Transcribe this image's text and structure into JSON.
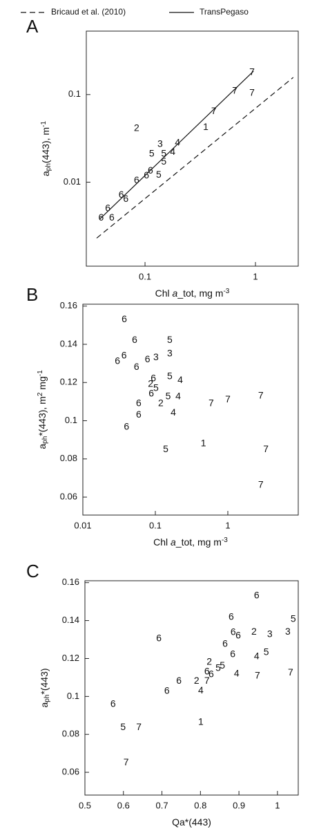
{
  "chart_data": [
    {
      "type": "scatter",
      "panel_label": "A",
      "xlog": true,
      "ylog": true,
      "xlim": [
        0.0294,
        2.44
      ],
      "ylim": [
        0.0011,
        0.53
      ],
      "xticks": [
        0.1,
        1
      ],
      "yticks": [
        0.01,
        0.1
      ],
      "xlabel": [
        {
          "text": "Chl "
        },
        {
          "text": "a",
          "style": "italic"
        },
        {
          "text": "_tot, mg m"
        },
        {
          "text": "-3",
          "style": "sup"
        }
      ],
      "ylabel": [
        {
          "text": "a"
        },
        {
          "text": "ph",
          "style": "sub"
        },
        {
          "text": "(443), m"
        },
        {
          "text": "-1",
          "style": "sup"
        }
      ],
      "series": [
        {
          "name": "Bricaud et al. (2010)",
          "style": "dashed",
          "color": "#111111",
          "x": [
            0.0365,
            2.2
          ],
          "values": [
            0.0023,
            0.157
          ]
        },
        {
          "name": "TransPegaso",
          "style": "solid",
          "color": "#111111",
          "x": [
            0.039,
            0.96
          ],
          "values": [
            0.0038,
            0.185
          ]
        }
      ],
      "points": {
        "x": [
          0.93,
          0.65,
          0.93,
          0.42,
          0.355,
          0.084,
          0.197,
          0.178,
          0.137,
          0.115,
          0.148,
          0.148,
          0.133,
          0.112,
          0.103,
          0.084,
          0.061,
          0.067,
          0.046,
          0.04,
          0.05
        ],
        "values": [
          0.179,
          0.109,
          0.104,
          0.064,
          0.042,
          0.041,
          0.028,
          0.022,
          0.027,
          0.021,
          0.021,
          0.017,
          0.012,
          0.0134,
          0.0118,
          0.0104,
          0.0071,
          0.0064,
          0.005,
          0.0039,
          0.0039
        ],
        "labels": [
          "7",
          "7",
          "7",
          "7",
          "1",
          "2",
          "4",
          "4",
          "3",
          "5",
          "5",
          "5",
          "5",
          "6",
          "6",
          "6",
          "6",
          "6",
          "6",
          "6",
          "6"
        ]
      }
    },
    {
      "type": "scatter",
      "panel_label": "B",
      "xlog": true,
      "ylog": false,
      "xlim": [
        0.01,
        9.36
      ],
      "ylim": [
        0.0506,
        0.161
      ],
      "xticks": [
        0.01,
        0.1,
        1
      ],
      "yticks": [
        0.06,
        0.08,
        0.1,
        0.12,
        0.14,
        0.16
      ],
      "xlabel": [
        {
          "text": "Chl "
        },
        {
          "text": "a",
          "style": "italic"
        },
        {
          "text": "_tot, mg m"
        },
        {
          "text": "-3",
          "style": "sup"
        }
      ],
      "ylabel": [
        {
          "text": "a"
        },
        {
          "text": "ph",
          "style": "sub"
        },
        {
          "text": "*(443), m"
        },
        {
          "text": "2",
          "style": "sup"
        },
        {
          "text": " mg"
        },
        {
          "text": "-1",
          "style": "sup"
        }
      ],
      "points": {
        "x": [
          0.0373,
          0.0518,
          0.158,
          0.03,
          0.037,
          0.055,
          0.078,
          0.102,
          0.158,
          0.094,
          0.158,
          0.22,
          0.086,
          0.102,
          0.088,
          0.15,
          0.206,
          0.119,
          0.059,
          0.59,
          1.0,
          2.85,
          0.059,
          0.177,
          0.04,
          0.46,
          0.139,
          3.35,
          2.85
        ],
        "values": [
          0.153,
          0.142,
          0.142,
          0.131,
          0.134,
          0.128,
          0.132,
          0.133,
          0.135,
          0.122,
          0.123,
          0.121,
          0.119,
          0.117,
          0.114,
          0.1125,
          0.1125,
          0.109,
          0.109,
          0.109,
          0.111,
          0.113,
          0.103,
          0.104,
          0.0966,
          0.088,
          0.0848,
          0.0848,
          0.0662
        ],
        "labels": [
          "6",
          "6",
          "5",
          "6",
          "6",
          "6",
          "6",
          "3",
          "3",
          "6",
          "5",
          "4",
          "2",
          "5",
          "6",
          "5",
          "4",
          "2",
          "6",
          "7",
          "7",
          "7",
          "6",
          "4",
          "6",
          "1",
          "5",
          "7",
          "7"
        ]
      }
    },
    {
      "type": "scatter",
      "panel_label": "C",
      "xlog": false,
      "ylog": false,
      "xlim": [
        0.5,
        1.054
      ],
      "ylim": [
        0.048,
        0.161
      ],
      "xticks": [
        0.5,
        0.6,
        0.7,
        0.8,
        0.9,
        1
      ],
      "yticks": [
        0.06,
        0.08,
        0.1,
        0.12,
        0.14,
        0.16
      ],
      "xlabel": [
        {
          "text": "Qa*(443)"
        }
      ],
      "ylabel": [
        {
          "text": "a"
        },
        {
          "text": "ph",
          "style": "sub"
        },
        {
          "text": "*(443)"
        }
      ],
      "points": {
        "x": [
          0.946,
          1.041,
          0.88,
          0.692,
          0.885,
          0.898,
          0.939,
          0.98,
          1.027,
          0.864,
          0.884,
          0.971,
          0.946,
          0.823,
          0.817,
          0.857,
          0.846,
          0.828,
          0.79,
          0.817,
          0.744,
          0.894,
          0.948,
          1.034,
          0.801,
          0.713,
          0.573,
          0.599,
          0.64,
          0.801,
          0.607
        ],
        "values": [
          0.153,
          0.1407,
          0.1418,
          0.1304,
          0.1337,
          0.132,
          0.134,
          0.1326,
          0.134,
          0.1275,
          0.122,
          0.1231,
          0.121,
          0.118,
          0.113,
          0.116,
          0.1147,
          0.1115,
          0.108,
          0.108,
          0.108,
          0.1118,
          0.1107,
          0.1125,
          0.103,
          0.1027,
          0.0958,
          0.0837,
          0.0837,
          0.0863,
          0.0651
        ],
        "labels": [
          "6",
          "5",
          "6",
          "6",
          "6",
          "6",
          "2",
          "3",
          "3",
          "6",
          "6",
          "5",
          "4",
          "2",
          "6",
          "5",
          "5",
          "6",
          "2",
          "7",
          "6",
          "4",
          "7",
          "7",
          "4",
          "6",
          "6",
          "5",
          "7",
          "1",
          "7"
        ]
      }
    }
  ]
}
